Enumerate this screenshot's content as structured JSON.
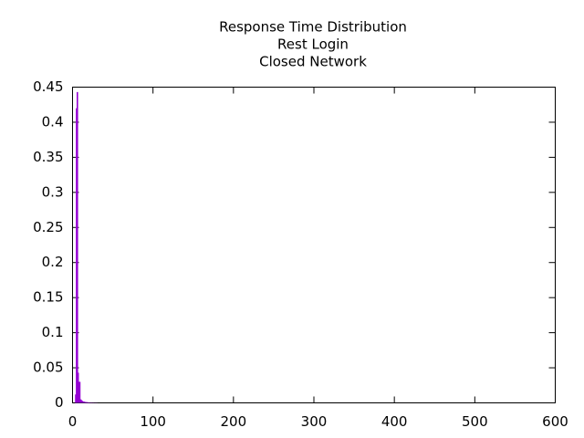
{
  "chart_data": {
    "type": "bar",
    "title": [
      "Response Time Distribution",
      "Rest Login",
      "Closed Network"
    ],
    "x": [
      4,
      5,
      6,
      7,
      8,
      9,
      10,
      11,
      12,
      13,
      14,
      15,
      16,
      17,
      18,
      19,
      20,
      22,
      24,
      26,
      28,
      30
    ],
    "values": [
      0.012,
      0.42,
      0.443,
      0.043,
      0.03,
      0.03,
      0.005,
      0.004,
      0.003,
      0.002,
      0.002,
      0.0015,
      0.0012,
      0.001,
      0.001,
      0.0008,
      0.0007,
      0.0005,
      0.0004,
      0.0003,
      0.0002,
      0.0002
    ],
    "color": "#9400d3",
    "xlim": [
      0,
      600
    ],
    "xticks": [
      0,
      100,
      200,
      300,
      400,
      500,
      600
    ],
    "ylim": [
      0,
      0.45
    ],
    "yticks": [
      0,
      0.05,
      0.1,
      0.15,
      0.2,
      0.25,
      0.3,
      0.35,
      0.4,
      0.45
    ],
    "grid": false
  }
}
